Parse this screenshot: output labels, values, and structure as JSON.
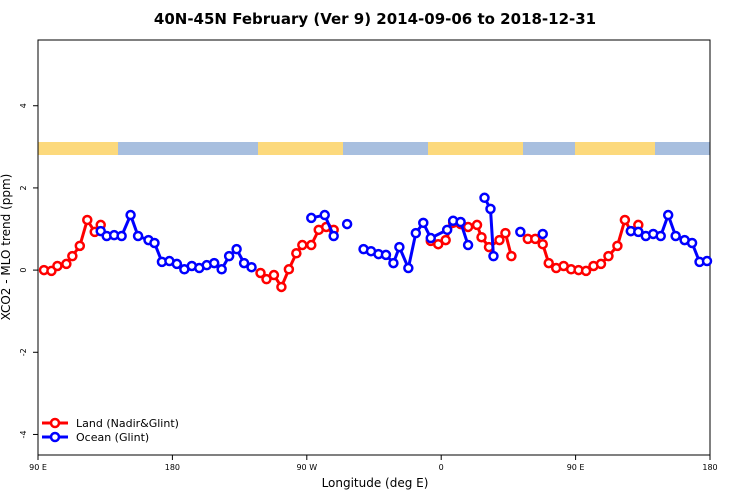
{
  "chart_data": {
    "type": "line",
    "title": "40N-45N February (Ver 9)   2014-09-06 to 2018-12-31",
    "x_label": "Longitude (deg E)",
    "y_label": "XCO2 - MLO trend (ppm)",
    "xlim": [
      90,
      540
    ],
    "xticks": [
      {
        "value": 90,
        "label": "90 E"
      },
      {
        "value": 180,
        "label": "180"
      },
      {
        "value": 270,
        "label": "90 W"
      },
      {
        "value": 360,
        "label": "0"
      },
      {
        "value": 450,
        "label": "90 E"
      },
      {
        "value": 540,
        "label": "180"
      }
    ],
    "ylim": [
      -4.5,
      5.6
    ],
    "yticks": [
      -4,
      -2,
      0,
      2,
      4
    ],
    "legend": "bottom-left",
    "series": [
      {
        "name": "Land (Nadir&Glint)",
        "color": "#ff0000",
        "x": [
          94,
          99,
          103,
          109,
          113,
          118,
          123,
          128,
          132,
          null,
          239,
          243,
          248,
          253,
          258,
          263,
          267,
          273,
          278,
          283,
          288,
          null,
          353,
          358,
          363,
          368,
          373,
          378,
          384,
          387,
          392,
          399,
          403,
          407,
          null,
          418,
          423,
          428,
          432,
          437,
          442,
          447,
          452,
          457,
          462,
          467,
          472,
          478,
          483,
          487,
          492
        ],
        "values": [
          0.0,
          -0.02,
          0.1,
          0.15,
          0.34,
          0.59,
          1.22,
          0.93,
          1.1,
          null,
          -0.07,
          -0.22,
          -0.12,
          -0.41,
          0.02,
          0.41,
          0.61,
          0.61,
          0.98,
          1.05,
          0.98,
          null,
          0.71,
          0.63,
          0.73,
          1.15,
          1.12,
          1.05,
          1.1,
          0.8,
          0.56,
          0.73,
          0.9,
          0.34,
          null,
          0.76,
          0.76,
          0.63,
          0.17,
          0.05,
          0.1,
          0.02,
          0.0,
          -0.02,
          0.1,
          0.15,
          0.34,
          0.59,
          1.22,
          0.95,
          1.1
        ]
      },
      {
        "name": "Ocean (Glint)",
        "color": "#0000ff",
        "x": [
          132,
          136,
          141,
          146,
          152,
          157,
          164,
          168,
          173,
          178,
          183,
          188,
          193,
          198,
          203,
          208,
          213,
          218,
          223,
          228,
          233,
          null,
          273,
          282,
          288,
          null,
          297,
          null,
          308,
          313,
          318,
          323,
          328,
          332,
          338,
          343,
          348,
          353,
          364,
          368,
          373,
          378,
          null,
          389,
          393,
          395,
          null,
          413,
          null,
          428,
          null,
          487,
          492,
          497,
          502,
          507,
          512,
          517,
          523,
          528,
          533,
          538
        ],
        "values": [
          0.95,
          0.83,
          0.85,
          0.83,
          1.34,
          0.83,
          0.73,
          0.66,
          0.2,
          0.22,
          0.15,
          0.02,
          0.1,
          0.05,
          0.12,
          0.17,
          0.02,
          0.34,
          0.51,
          0.17,
          0.07,
          null,
          1.27,
          1.34,
          0.83,
          null,
          1.12,
          null,
          0.51,
          0.46,
          0.39,
          0.37,
          0.17,
          0.56,
          0.05,
          0.9,
          1.15,
          0.78,
          0.98,
          1.2,
          1.17,
          0.61,
          null,
          1.76,
          1.49,
          0.34,
          null,
          0.93,
          null,
          0.88,
          null,
          0.95,
          0.93,
          0.83,
          0.88,
          0.83,
          1.34,
          0.83,
          0.73,
          0.66,
          0.2,
          0.22
        ]
      }
    ]
  }
}
